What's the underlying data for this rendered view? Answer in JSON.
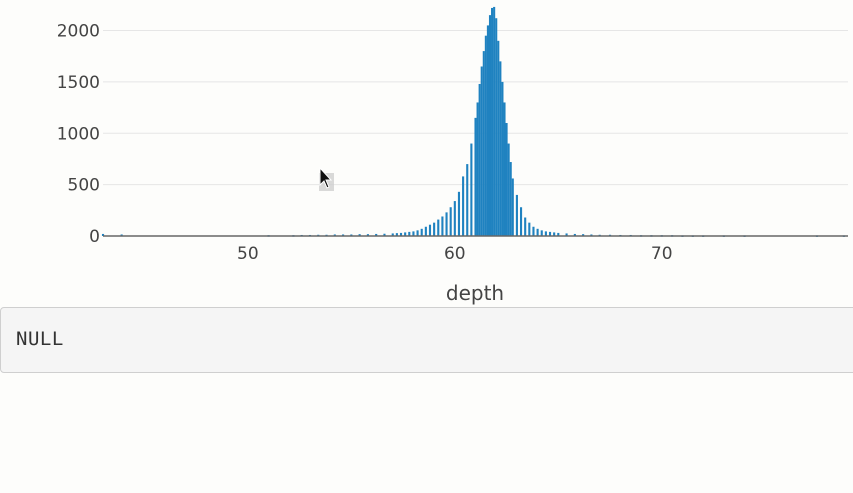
{
  "chart_data": {
    "type": "bar",
    "title": "",
    "xlabel": "depth",
    "ylabel": "",
    "xlim": [
      43,
      79
    ],
    "ylim": [
      0,
      2200
    ],
    "yticks": [
      "0",
      "500",
      "1000",
      "1500",
      "2000"
    ],
    "xticks": [
      "50",
      "60",
      "70"
    ],
    "grid": true,
    "bar_color": "#1f82c0",
    "bin_width": 0.1,
    "x": [
      43.0,
      43.9,
      51.0,
      52.2,
      52.6,
      53.0,
      53.4,
      53.8,
      54.2,
      54.6,
      55.0,
      55.4,
      55.8,
      56.2,
      56.6,
      57.0,
      57.2,
      57.4,
      57.6,
      57.8,
      58.0,
      58.2,
      58.4,
      58.6,
      58.8,
      59.0,
      59.2,
      59.4,
      59.6,
      59.8,
      60.0,
      60.2,
      60.4,
      60.6,
      60.8,
      61.0,
      61.1,
      61.2,
      61.3,
      61.4,
      61.5,
      61.6,
      61.7,
      61.8,
      61.9,
      62.0,
      62.1,
      62.2,
      62.3,
      62.4,
      62.5,
      62.6,
      62.7,
      62.8,
      63.0,
      63.2,
      63.4,
      63.6,
      63.8,
      64.0,
      64.2,
      64.4,
      64.6,
      64.8,
      65.0,
      65.4,
      65.8,
      66.2,
      66.6,
      67.0,
      67.5,
      68.0,
      68.5,
      69.0,
      69.5,
      70.0,
      70.5,
      71.0,
      71.5,
      72.0,
      73.0,
      74.0,
      77.5,
      78.8
    ],
    "values": [
      20,
      15,
      8,
      8,
      10,
      10,
      12,
      12,
      15,
      15,
      15,
      18,
      18,
      20,
      22,
      25,
      28,
      30,
      35,
      40,
      45,
      55,
      70,
      90,
      110,
      130,
      160,
      190,
      230,
      280,
      340,
      430,
      580,
      700,
      900,
      1150,
      1300,
      1480,
      1650,
      1800,
      1950,
      2050,
      2150,
      2220,
      2230,
      2120,
      1900,
      1700,
      1500,
      1300,
      1100,
      900,
      720,
      560,
      400,
      280,
      180,
      130,
      90,
      70,
      55,
      45,
      40,
      35,
      30,
      25,
      20,
      18,
      15,
      12,
      12,
      10,
      10,
      8,
      8,
      8,
      8,
      6,
      6,
      6,
      6,
      6,
      6,
      6
    ]
  },
  "output": {
    "text": "NULL"
  }
}
